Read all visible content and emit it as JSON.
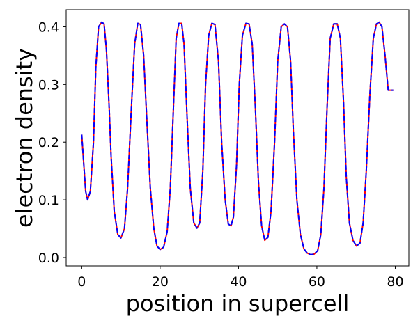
{
  "chart_data": {
    "type": "line",
    "title": "",
    "xlabel": "position in supercell",
    "ylabel": "electron density",
    "xlim": [
      -3.97,
      83.47
    ],
    "ylim": [
      -0.0145,
      0.4295
    ],
    "xticks": [
      0,
      20,
      40,
      60,
      80
    ],
    "yticks": [
      0.0,
      0.1,
      0.2,
      0.3,
      0.4
    ],
    "xtick_labels": [
      "0",
      "20",
      "40",
      "60",
      "80"
    ],
    "ytick_labels": [
      "0.0",
      "0.1",
      "0.2",
      "0.3",
      "0.4"
    ],
    "grid": false,
    "legend": null,
    "series": [
      {
        "color": "#ff0000",
        "style": "solid",
        "x": [
          0.0,
          1.0,
          1.5,
          2.2,
          3.0,
          3.6,
          4.3,
          5.1,
          5.7,
          6.3,
          7.0,
          7.5,
          8.3,
          9.2,
          10.0,
          10.9,
          11.7,
          12.6,
          13.5,
          14.3,
          15.0,
          15.8,
          16.6,
          17.5,
          18.4,
          19.2,
          20.0,
          20.9,
          21.8,
          22.6,
          23.4,
          24.1,
          24.8,
          25.5,
          26.1,
          26.9,
          27.7,
          28.6,
          29.4,
          30.1,
          30.9,
          31.6,
          32.4,
          33.2,
          34.0,
          34.9,
          35.7,
          36.6,
          37.4,
          38.1,
          38.7,
          39.5,
          40.2,
          41.0,
          41.9,
          42.7,
          43.5,
          44.3,
          45.1,
          45.9,
          46.7,
          47.5,
          48.3,
          49.2,
          50.0,
          50.9,
          51.7,
          52.5,
          53.3,
          54.0,
          54.9,
          55.8,
          56.7,
          57.5,
          58.4,
          59.3,
          60.2,
          61.0,
          61.8,
          62.6,
          63.4,
          64.3,
          65.2,
          66.0,
          66.8,
          67.5,
          68.3,
          69.2,
          70.1,
          71.0,
          71.8,
          72.6,
          73.5,
          74.4,
          75.2,
          75.9,
          76.6,
          77.4,
          78.2,
          78.8,
          79.5
        ],
        "y": [
          0.213,
          0.115,
          0.1,
          0.115,
          0.2,
          0.33,
          0.4,
          0.408,
          0.405,
          0.36,
          0.26,
          0.175,
          0.08,
          0.04,
          0.034,
          0.05,
          0.12,
          0.25,
          0.37,
          0.406,
          0.404,
          0.35,
          0.24,
          0.12,
          0.05,
          0.02,
          0.014,
          0.018,
          0.045,
          0.12,
          0.26,
          0.38,
          0.406,
          0.406,
          0.37,
          0.24,
          0.12,
          0.06,
          0.051,
          0.06,
          0.15,
          0.3,
          0.385,
          0.406,
          0.404,
          0.34,
          0.2,
          0.1,
          0.058,
          0.055,
          0.07,
          0.16,
          0.3,
          0.385,
          0.406,
          0.405,
          0.37,
          0.26,
          0.13,
          0.055,
          0.03,
          0.035,
          0.08,
          0.2,
          0.34,
          0.4,
          0.405,
          0.4,
          0.34,
          0.22,
          0.1,
          0.04,
          0.015,
          0.008,
          0.005,
          0.006,
          0.012,
          0.04,
          0.12,
          0.26,
          0.38,
          0.405,
          0.405,
          0.38,
          0.27,
          0.14,
          0.06,
          0.03,
          0.02,
          0.025,
          0.06,
          0.15,
          0.28,
          0.38,
          0.405,
          0.408,
          0.4,
          0.35,
          0.29,
          0.29,
          0.29
        ]
      },
      {
        "color": "#0000ff",
        "style": "dashed",
        "x": [
          0.0,
          1.0,
          1.5,
          2.2,
          3.0,
          3.6,
          4.3,
          5.1,
          5.7,
          6.3,
          7.0,
          7.5,
          8.3,
          9.2,
          10.0,
          10.9,
          11.7,
          12.6,
          13.5,
          14.3,
          15.0,
          15.8,
          16.6,
          17.5,
          18.4,
          19.2,
          20.0,
          20.9,
          21.8,
          22.6,
          23.4,
          24.1,
          24.8,
          25.5,
          26.1,
          26.9,
          27.7,
          28.6,
          29.4,
          30.1,
          30.9,
          31.6,
          32.4,
          33.2,
          34.0,
          34.9,
          35.7,
          36.6,
          37.4,
          38.1,
          38.7,
          39.5,
          40.2,
          41.0,
          41.9,
          42.7,
          43.5,
          44.3,
          45.1,
          45.9,
          46.7,
          47.5,
          48.3,
          49.2,
          50.0,
          50.9,
          51.7,
          52.5,
          53.3,
          54.0,
          54.9,
          55.8,
          56.7,
          57.5,
          58.4,
          59.3,
          60.2,
          61.0,
          61.8,
          62.6,
          63.4,
          64.3,
          65.2,
          66.0,
          66.8,
          67.5,
          68.3,
          69.2,
          70.1,
          71.0,
          71.8,
          72.6,
          73.5,
          74.4,
          75.2,
          75.9,
          76.6,
          77.4,
          78.2,
          78.8,
          79.5
        ],
        "y": [
          0.213,
          0.115,
          0.1,
          0.115,
          0.2,
          0.33,
          0.4,
          0.408,
          0.405,
          0.36,
          0.26,
          0.175,
          0.08,
          0.04,
          0.034,
          0.05,
          0.12,
          0.25,
          0.37,
          0.406,
          0.404,
          0.35,
          0.24,
          0.12,
          0.05,
          0.02,
          0.014,
          0.018,
          0.045,
          0.12,
          0.26,
          0.38,
          0.406,
          0.406,
          0.37,
          0.24,
          0.12,
          0.06,
          0.051,
          0.06,
          0.15,
          0.3,
          0.385,
          0.406,
          0.404,
          0.34,
          0.2,
          0.1,
          0.058,
          0.055,
          0.07,
          0.16,
          0.3,
          0.385,
          0.406,
          0.405,
          0.37,
          0.26,
          0.13,
          0.055,
          0.03,
          0.035,
          0.08,
          0.2,
          0.34,
          0.4,
          0.405,
          0.4,
          0.34,
          0.22,
          0.1,
          0.04,
          0.015,
          0.008,
          0.005,
          0.006,
          0.012,
          0.04,
          0.12,
          0.26,
          0.38,
          0.405,
          0.405,
          0.38,
          0.27,
          0.14,
          0.06,
          0.03,
          0.02,
          0.025,
          0.06,
          0.15,
          0.28,
          0.38,
          0.405,
          0.408,
          0.4,
          0.35,
          0.29,
          0.29,
          0.29
        ]
      }
    ]
  }
}
